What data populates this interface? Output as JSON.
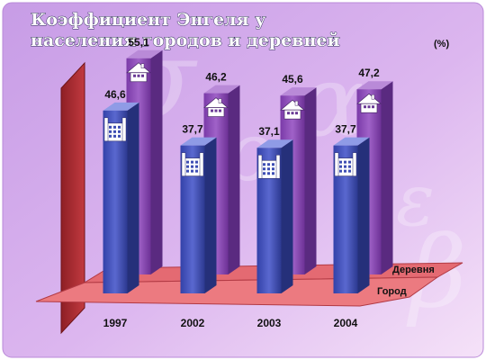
{
  "title_line1": "Коэффициент   Энгеля   у",
  "title_line2": "населения   городов   и   деревней",
  "unit": "(%)",
  "chart_data": {
    "type": "bar",
    "title": "Коэффициент Энгеля у населения городов и деревней",
    "categories": [
      "1997",
      "2002",
      "2003",
      "2004"
    ],
    "series": [
      {
        "name": "Город",
        "values": [
          46.6,
          37.7,
          37.1,
          37.7
        ],
        "labels": [
          "46,6",
          "37,7",
          "37,1",
          "37,7"
        ],
        "color": "#3d4db3"
      },
      {
        "name": "Деревня",
        "values": [
          55.1,
          46.2,
          45.6,
          47.2
        ],
        "labels": [
          "55,1",
          "46,2",
          "45,6",
          "47,2"
        ],
        "color": "#8a4ab5"
      }
    ],
    "ylabel": "(%)",
    "ylim": [
      0,
      60
    ]
  },
  "colors": {
    "background_top": "#cfa6ea",
    "background_bottom": "#f3dcf7",
    "floor": "#e0606a",
    "back_wall": "#a82c32"
  },
  "icons": {
    "city": "city-building-icon",
    "village": "house-icon"
  }
}
